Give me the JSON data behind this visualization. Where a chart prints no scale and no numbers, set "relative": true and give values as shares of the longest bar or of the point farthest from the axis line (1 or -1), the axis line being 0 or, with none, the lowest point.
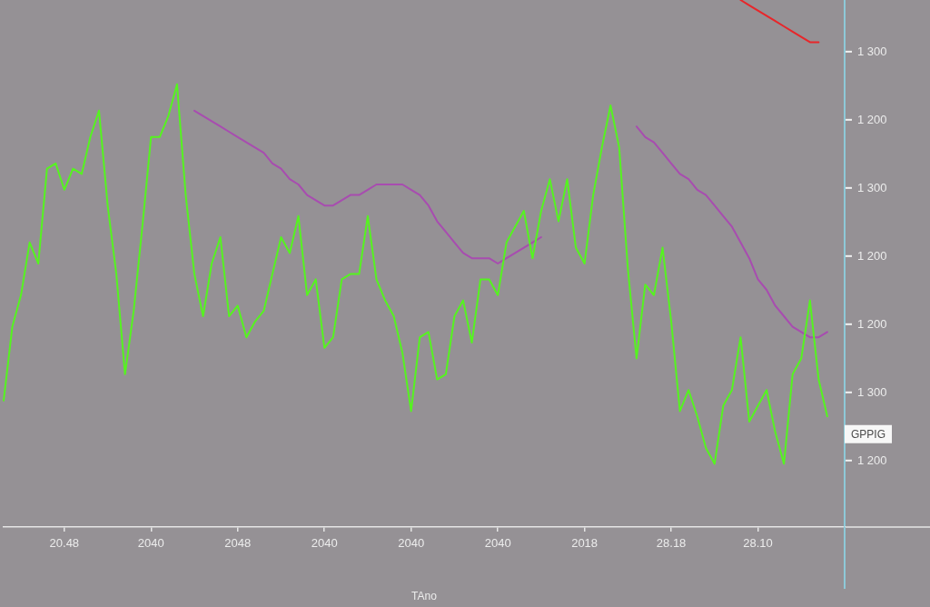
{
  "chart_data": {
    "type": "line",
    "xlabel": "TAno",
    "marker": "none",
    "legend": false,
    "relative": true,
    "categories": [
      null,
      null,
      null,
      null,
      null,
      null,
      null,
      "20.48",
      null,
      null,
      null,
      null,
      null,
      null,
      null,
      null,
      null,
      "2040",
      null,
      null,
      null,
      null,
      null,
      null,
      null,
      null,
      null,
      "2048",
      null,
      null,
      null,
      null,
      null,
      null,
      null,
      null,
      null,
      "2040",
      null,
      null,
      null,
      null,
      null,
      null,
      null,
      null,
      null,
      "2040",
      null,
      null,
      null,
      null,
      null,
      null,
      null,
      null,
      null,
      "2040",
      null,
      null,
      null,
      null,
      null,
      null,
      null,
      null,
      null,
      "2018",
      null,
      null,
      null,
      null,
      null,
      null,
      null,
      null,
      null,
      "28.18",
      null,
      null,
      null,
      null,
      null,
      null,
      null,
      null,
      null,
      "28.10",
      null,
      null,
      null,
      null,
      null,
      null,
      null,
      null,
      null,
      null
    ],
    "series": [
      {
        "color": "#55f41f",
        "values": [
          0.24,
          0.38,
          0.44,
          0.54,
          0.5,
          0.68,
          0.69,
          0.64,
          0.68,
          0.67,
          0.74,
          0.79,
          0.61,
          0.48,
          0.29,
          0.41,
          0.57,
          0.74,
          0.74,
          0.78,
          0.84,
          0.63,
          0.48,
          0.4,
          0.5,
          0.55,
          0.4,
          0.42,
          0.36,
          0.39,
          0.41,
          0.48,
          0.55,
          0.52,
          0.59,
          0.44,
          0.47,
          0.34,
          0.36,
          0.47,
          0.48,
          0.48,
          0.59,
          0.47,
          0.43,
          0.4,
          0.33,
          0.22,
          0.36,
          0.37,
          0.28,
          0.29,
          0.4,
          0.43,
          0.35,
          0.47,
          0.47,
          0.44,
          0.54,
          0.57,
          0.6,
          0.51,
          0.6,
          0.66,
          0.58,
          0.66,
          0.53,
          0.5,
          0.63,
          0.72,
          0.8,
          0.72,
          0.49,
          0.32,
          0.46,
          0.44,
          0.53,
          0.39,
          0.22,
          0.26,
          0.21,
          0.15,
          0.12,
          0.23,
          0.26,
          0.36,
          0.2,
          0.23,
          0.26,
          0.18,
          0.12,
          0.29,
          0.32,
          0.43,
          0.28,
          0.21,
          null,
          null
        ]
      },
      {
        "color": "#a84cb0",
        "values": [
          null,
          null,
          null,
          null,
          null,
          null,
          null,
          null,
          null,
          null,
          null,
          null,
          null,
          null,
          null,
          null,
          null,
          null,
          null,
          null,
          null,
          null,
          0.79,
          0.78,
          0.77,
          0.76,
          0.75,
          0.74,
          0.73,
          0.72,
          0.71,
          0.69,
          0.68,
          0.66,
          0.65,
          0.63,
          0.62,
          0.61,
          0.61,
          0.62,
          0.63,
          0.63,
          0.64,
          0.65,
          0.65,
          0.65,
          0.65,
          0.64,
          0.63,
          0.61,
          0.58,
          0.56,
          0.54,
          0.52,
          0.51,
          0.51,
          0.51,
          0.5,
          0.51,
          0.52,
          0.53,
          0.54,
          0.55,
          null,
          null,
          null,
          null,
          null,
          null,
          null,
          null,
          null,
          null,
          0.76,
          0.74,
          0.73,
          0.71,
          0.69,
          0.67,
          0.66,
          0.64,
          0.63,
          0.61,
          0.59,
          0.57,
          0.54,
          0.51,
          0.47,
          0.45,
          0.42,
          0.4,
          0.38,
          0.37,
          0.36,
          0.36,
          0.37,
          null,
          null
        ]
      },
      {
        "color": "#e8262a",
        "values": [
          null,
          null,
          null,
          null,
          null,
          null,
          null,
          null,
          null,
          null,
          null,
          null,
          null,
          null,
          null,
          null,
          null,
          null,
          null,
          null,
          null,
          null,
          null,
          null,
          null,
          null,
          null,
          null,
          null,
          null,
          null,
          null,
          null,
          null,
          null,
          null,
          null,
          null,
          null,
          null,
          null,
          null,
          null,
          null,
          null,
          null,
          null,
          null,
          null,
          null,
          null,
          null,
          null,
          null,
          null,
          null,
          null,
          null,
          null,
          null,
          null,
          null,
          null,
          null,
          null,
          null,
          null,
          null,
          null,
          null,
          null,
          null,
          null,
          null,
          null,
          null,
          null,
          null,
          null,
          null,
          null,
          null,
          null,
          null,
          null,
          1,
          0.99,
          0.98,
          0.97,
          0.96,
          0.95,
          0.94,
          0.93,
          0.92,
          0.92,
          null,
          null,
          null
        ]
      }
    ],
    "annotations": [
      "1 300",
      "1 200",
      "1 300",
      "1 200",
      "1 200",
      "1 300",
      "1 200",
      "GPPIG"
    ]
  }
}
